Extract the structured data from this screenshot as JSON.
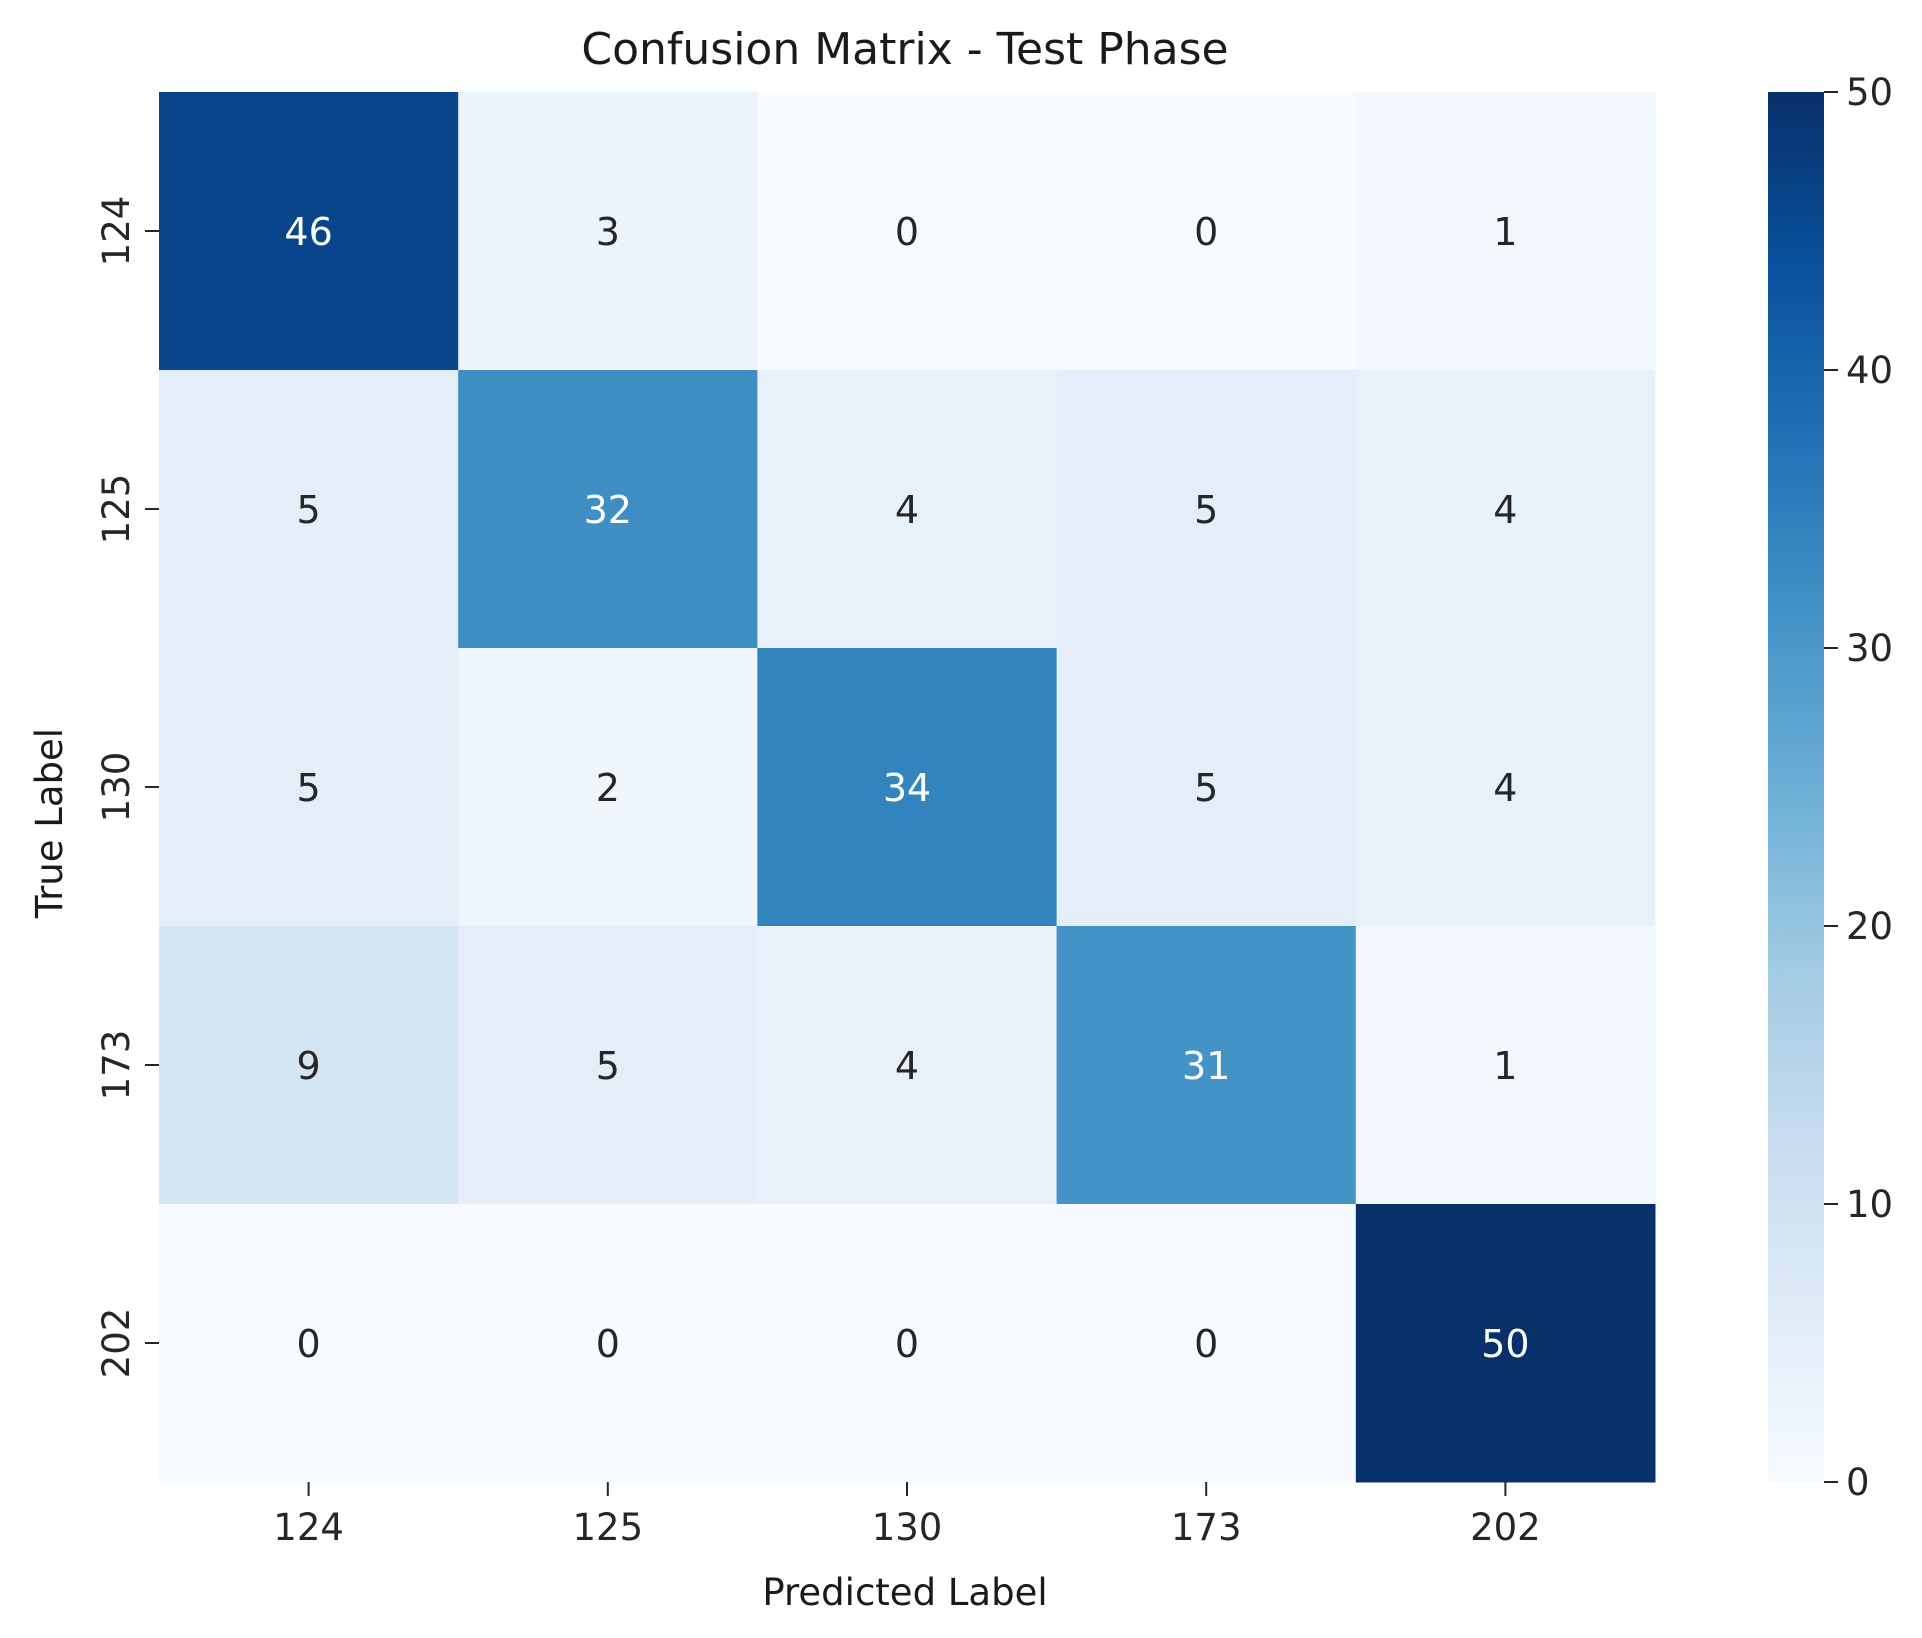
{
  "chart_data": {
    "type": "heatmap",
    "title": "Confusion Matrix - Test Phase",
    "xlabel": "Predicted Label",
    "ylabel": "True Label",
    "x_categories": [
      "124",
      "125",
      "130",
      "173",
      "202"
    ],
    "y_categories": [
      "124",
      "125",
      "130",
      "173",
      "202"
    ],
    "values": [
      [
        46,
        3,
        0,
        0,
        1
      ],
      [
        5,
        32,
        4,
        5,
        4
      ],
      [
        5,
        2,
        34,
        5,
        4
      ],
      [
        9,
        5,
        4,
        31,
        1
      ],
      [
        0,
        0,
        0,
        0,
        50
      ]
    ],
    "colorbar": {
      "min": 0,
      "max": 50,
      "ticks": [
        "0",
        "10",
        "20",
        "30",
        "40",
        "50"
      ]
    },
    "colormap": "Blues",
    "grid": false,
    "legend": "colorbar-right"
  }
}
